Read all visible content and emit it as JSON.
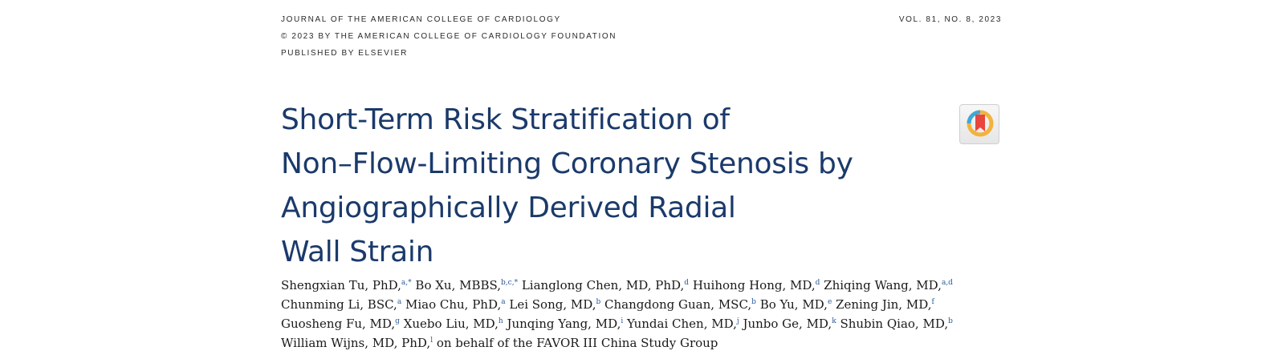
{
  "header": {
    "journal": "JOURNAL OF THE AMERICAN COLLEGE OF CARDIOLOGY",
    "copyright": "© 2023 BY THE AMERICAN COLLEGE OF CARDIOLOGY FOUNDATION",
    "publisher": "PUBLISHED BY ELSEVIER",
    "volume": "VOL. 81, NO. 8, 2023"
  },
  "title": {
    "lines": [
      "Short-Term Risk Stratification of",
      "Non–Flow-Limiting Coronary Stenosis by",
      "Angiographically Derived Radial",
      "Wall Strain"
    ]
  },
  "crossmark": {
    "icon": "crossmark-icon",
    "colors": [
      "#e8453c",
      "#f2b33d",
      "#3fa8d8"
    ]
  },
  "authors": {
    "lines": [
      [
        {
          "name": "Shengxian Tu, PhD,",
          "sup": "a,*"
        },
        {
          "name": " Bo Xu, MBBS,",
          "sup": "b,c,*"
        },
        {
          "name": " Lianglong Chen, MD, PhD,",
          "sup": "d"
        },
        {
          "name": " Huihong Hong, MD,",
          "sup": "d"
        },
        {
          "name": " Zhiqing Wang, MD,",
          "sup": "a,d"
        }
      ],
      [
        {
          "name": "Chunming Li, BSC,",
          "sup": "a"
        },
        {
          "name": " Miao Chu, PhD,",
          "sup": "a"
        },
        {
          "name": " Lei Song, MD,",
          "sup": "b"
        },
        {
          "name": " Changdong Guan, MSC,",
          "sup": "b"
        },
        {
          "name": " Bo Yu, MD,",
          "sup": "e"
        },
        {
          "name": " Zening Jin, MD,",
          "sup": "f"
        }
      ],
      [
        {
          "name": "Guosheng Fu, MD,",
          "sup": "g"
        },
        {
          "name": " Xuebo Liu, MD,",
          "sup": "h"
        },
        {
          "name": " Junqing Yang, MD,",
          "sup": "i"
        },
        {
          "name": " Yundai Chen, MD,",
          "sup": "j"
        },
        {
          "name": " Junbo Ge, MD,",
          "sup": "k"
        },
        {
          "name": " Shubin Qiao, MD,",
          "sup": "b"
        }
      ],
      [
        {
          "name": "William Wijns, MD, PhD,",
          "sup": "l"
        },
        {
          "name": " on behalf of the FAVOR III China Study Group",
          "sup": ""
        }
      ]
    ]
  }
}
